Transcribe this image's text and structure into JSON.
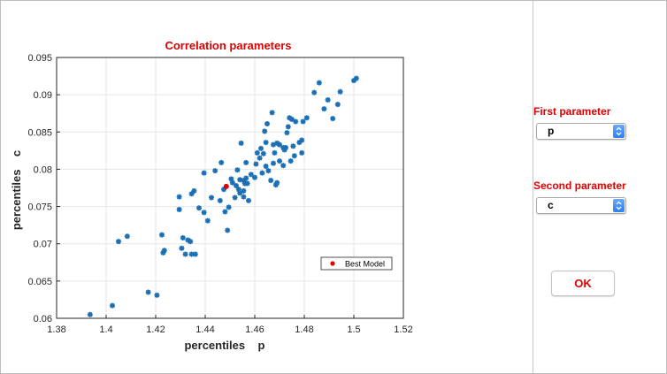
{
  "plot": {
    "title": "Correlation parameters",
    "xlabel": "percentiles    p",
    "ylabel": "percentiles    c",
    "legend_label": "Best Model"
  },
  "panel": {
    "first_label": "First parameter",
    "first_value": "p",
    "second_label": "Second parameter",
    "second_value": "c",
    "ok_label": "OK"
  },
  "colors": {
    "title": "#e00000",
    "points": "#1a6fb5",
    "best": "#e00000",
    "labels": "#e00000"
  },
  "chart_data": {
    "type": "scatter",
    "title": "Correlation parameters",
    "xlabel": "percentiles    p",
    "ylabel": "percentiles    c",
    "xlim": [
      1.38,
      1.52
    ],
    "ylim": [
      0.06,
      0.095
    ],
    "xticks": [
      "1.38",
      "1.4",
      "1.42",
      "1.44",
      "1.46",
      "1.48",
      "1.5",
      "1.52"
    ],
    "yticks": [
      "0.06",
      "0.065",
      "0.07",
      "0.075",
      "0.08",
      "0.085",
      "0.09",
      "0.095"
    ],
    "grid": true,
    "legend_position": "lower-right",
    "series": [
      {
        "name": "",
        "x": [
          1.3935,
          1.4025,
          1.405,
          1.4085,
          1.417,
          1.4205,
          1.4225,
          1.423,
          1.4235,
          1.4295,
          1.4295,
          1.4305,
          1.431,
          1.432,
          1.433,
          1.434,
          1.4345,
          1.4345,
          1.436,
          1.4355,
          1.4375,
          1.4395,
          1.4395,
          1.441,
          1.4425,
          1.444,
          1.446,
          1.4465,
          1.4475,
          1.448,
          1.449,
          1.4495,
          1.4505,
          1.451,
          1.452,
          1.4525,
          1.453,
          1.4535,
          1.454,
          1.454,
          1.4545,
          1.4555,
          1.4555,
          1.4555,
          1.456,
          1.4565,
          1.4565,
          1.457,
          1.4575,
          1.4585,
          1.46,
          1.4605,
          1.461,
          1.462,
          1.4625,
          1.463,
          1.4635,
          1.464,
          1.4645,
          1.4645,
          1.465,
          1.4655,
          1.4665,
          1.467,
          1.4675,
          1.4675,
          1.468,
          1.4685,
          1.469,
          1.469,
          1.47,
          1.47,
          1.4715,
          1.4715,
          1.472,
          1.4725,
          1.473,
          1.4735,
          1.474,
          1.4745,
          1.475,
          1.4755,
          1.476,
          1.4765,
          1.478,
          1.479,
          1.479,
          1.4795,
          1.481,
          1.484,
          1.486,
          1.488,
          1.4895,
          1.4915,
          1.4935,
          1.4945,
          1.5,
          1.501
        ],
        "y": [
          0.0605,
          0.0617,
          0.0703,
          0.071,
          0.0635,
          0.0631,
          0.0712,
          0.0688,
          0.0691,
          0.0746,
          0.0763,
          0.0694,
          0.0708,
          0.0686,
          0.0705,
          0.0703,
          0.0686,
          0.0767,
          0.0686,
          0.0771,
          0.0748,
          0.0742,
          0.0795,
          0.0731,
          0.0762,
          0.0798,
          0.0758,
          0.0809,
          0.0773,
          0.0743,
          0.0718,
          0.0749,
          0.0787,
          0.0782,
          0.0762,
          0.0778,
          0.0799,
          0.0773,
          0.0786,
          0.0768,
          0.0835,
          0.0785,
          0.0771,
          0.0763,
          0.0781,
          0.0809,
          0.0788,
          0.0781,
          0.0758,
          0.0793,
          0.0789,
          0.0807,
          0.0822,
          0.0815,
          0.0828,
          0.0795,
          0.0821,
          0.0851,
          0.0836,
          0.0804,
          0.0861,
          0.0798,
          0.0785,
          0.0876,
          0.0833,
          0.0808,
          0.0822,
          0.0779,
          0.0782,
          0.0835,
          0.0833,
          0.0811,
          0.0805,
          0.0829,
          0.0826,
          0.0829,
          0.0849,
          0.0857,
          0.0869,
          0.0811,
          0.0867,
          0.0831,
          0.0818,
          0.0864,
          0.0836,
          0.0822,
          0.0839,
          0.0864,
          0.0869,
          0.0903,
          0.0916,
          0.0881,
          0.0893,
          0.0868,
          0.0887,
          0.0904,
          0.0919,
          0.0922
        ]
      }
    ],
    "best_model": {
      "name": "Best Model",
      "x": 1.4485,
      "y": 0.0777
    }
  }
}
